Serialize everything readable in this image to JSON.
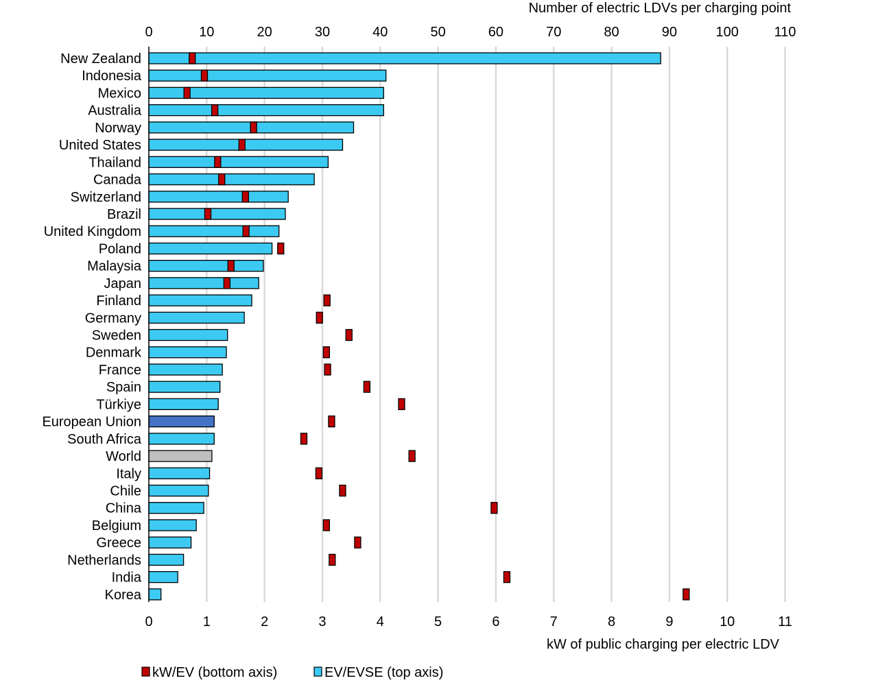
{
  "chart_data": {
    "type": "bar",
    "orientation": "horizontal",
    "top_axis": {
      "title": "Number of electric LDVs per charging point",
      "range": [
        0,
        110
      ],
      "ticks": [
        "0",
        "10",
        "20",
        "30",
        "40",
        "50",
        "60",
        "70",
        "80",
        "90",
        "100",
        "110"
      ],
      "grid": true
    },
    "bottom_axis": {
      "title": "kW of public charging per electric LDV",
      "range": [
        0,
        11
      ],
      "ticks": [
        "0",
        "1",
        "2",
        "3",
        "4",
        "5",
        "6",
        "7",
        "8",
        "9",
        "10",
        "11"
      ]
    },
    "categories": [
      "New Zealand",
      "Indonesia",
      "Mexico",
      "Australia",
      "Norway",
      "United States",
      "Thailand",
      "Canada",
      "Switzerland",
      "Brazil",
      "United Kingdom",
      "Poland",
      "Malaysia",
      "Japan",
      "Finland",
      "Germany",
      "Sweden",
      "Denmark",
      "France",
      "Spain",
      "Türkiye",
      "European Union",
      "South Africa",
      "World",
      "Italy",
      "Chile",
      "China",
      "Belgium",
      "Greece",
      "Netherlands",
      "India",
      "Korea"
    ],
    "series": [
      {
        "name": "EV/EVSE (top axis)",
        "axis": "top",
        "mark": "bar",
        "color": "#3ccaf2",
        "values": [
          88.5,
          41.0,
          40.6,
          40.6,
          35.4,
          33.5,
          31.0,
          28.6,
          24.1,
          23.6,
          22.5,
          21.3,
          19.8,
          19.0,
          17.8,
          16.5,
          13.6,
          13.4,
          12.7,
          12.3,
          12.0,
          11.3,
          11.3,
          10.9,
          10.5,
          10.3,
          9.5,
          8.2,
          7.3,
          6.0,
          5.0,
          2.1
        ]
      },
      {
        "name": "kW/EV (bottom axis)",
        "axis": "bottom",
        "mark": "marker",
        "color": "#c00000",
        "values": [
          0.75,
          0.96,
          0.66,
          1.14,
          1.81,
          1.61,
          1.19,
          1.26,
          1.67,
          1.02,
          1.68,
          2.28,
          1.42,
          1.35,
          3.08,
          2.95,
          3.46,
          3.07,
          3.09,
          3.77,
          4.37,
          3.16,
          2.68,
          4.55,
          2.94,
          3.35,
          5.97,
          3.07,
          3.61,
          3.17,
          6.19,
          9.29
        ]
      }
    ],
    "bar_color_overrides": {
      "European Union": "#4472c4",
      "World": "#bfbfbf"
    },
    "legend": {
      "position": "bottom-left",
      "items": [
        {
          "label": "kW/EV (bottom axis)",
          "color": "#c00000"
        },
        {
          "label": "EV/EVSE (top axis)",
          "color": "#3ccaf2"
        }
      ]
    }
  }
}
